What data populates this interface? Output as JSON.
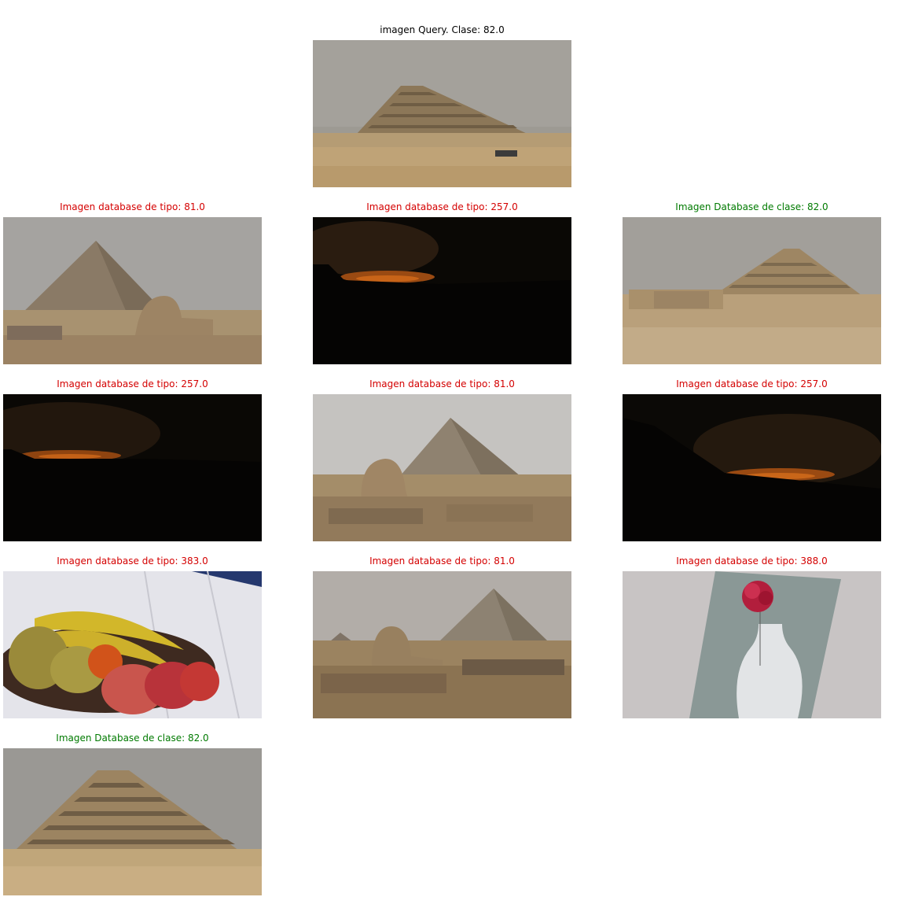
{
  "query": {
    "title": "imagen Query. Clase: 82.0",
    "subject": "step-pyramid-icon"
  },
  "results": [
    {
      "title": "Imagen database de tipo: 81.0",
      "match": false,
      "subject": "great-pyramid-sphinx-icon"
    },
    {
      "title": "Imagen database de tipo: 257.0",
      "match": false,
      "subject": "night-glow-icon"
    },
    {
      "title": "Imagen Database de clase: 82.0",
      "match": true,
      "subject": "step-pyramid-ruins-icon"
    },
    {
      "title": "Imagen database de tipo: 257.0",
      "match": false,
      "subject": "night-glow-icon"
    },
    {
      "title": "Imagen database de tipo: 81.0",
      "match": false,
      "subject": "sphinx-pyramid-icon"
    },
    {
      "title": "Imagen database de tipo: 257.0",
      "match": false,
      "subject": "night-glow-icon"
    },
    {
      "title": "Imagen database de tipo: 383.0",
      "match": false,
      "subject": "fruit-bowl-icon"
    },
    {
      "title": "Imagen database de tipo: 81.0",
      "match": false,
      "subject": "sphinx-pyramids-icon"
    },
    {
      "title": "Imagen database de tipo: 388.0",
      "match": false,
      "subject": "flower-vase-icon"
    },
    {
      "title": "Imagen Database de clase: 82.0",
      "match": true,
      "subject": "step-pyramid-closeup-icon"
    }
  ],
  "colors": {
    "match": "#007a00",
    "nomatch": "#d40000",
    "query": "#000000"
  }
}
